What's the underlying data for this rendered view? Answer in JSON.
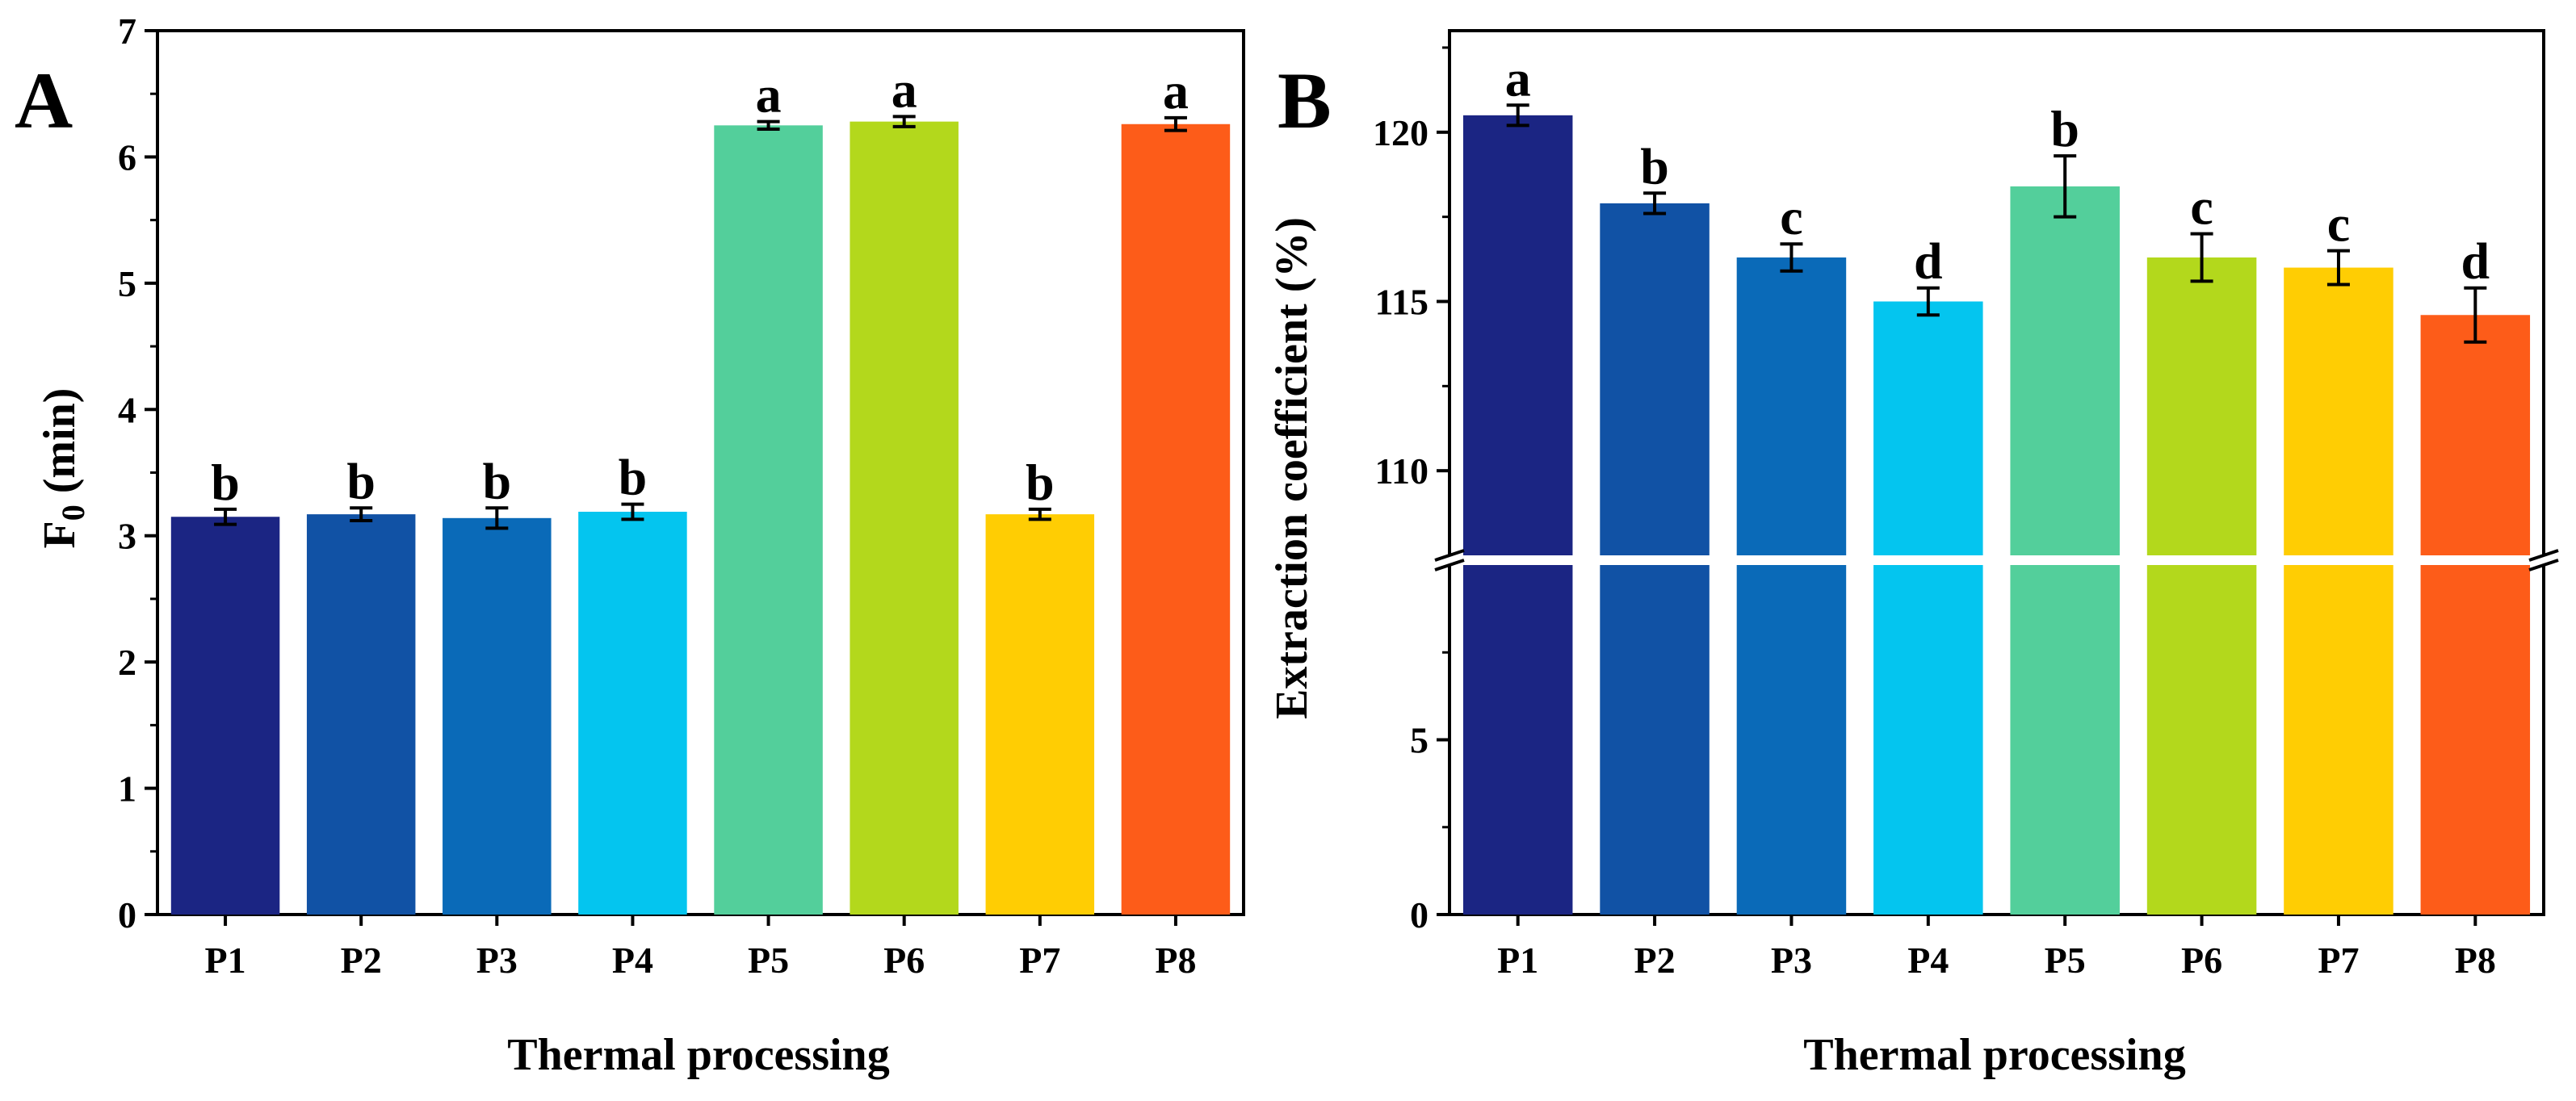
{
  "chart_data": [
    {
      "type": "bar",
      "panel_label": "A",
      "xlabel": "Thermal processing",
      "ylabel_main": "F",
      "ylabel_sub": "0",
      "ylabel_rest": " (min)",
      "categories": [
        "P1",
        "P2",
        "P3",
        "P4",
        "P5",
        "P6",
        "P7",
        "P8"
      ],
      "values": [
        3.15,
        3.17,
        3.14,
        3.19,
        6.25,
        6.28,
        3.17,
        6.26
      ],
      "errors": [
        0.06,
        0.05,
        0.08,
        0.06,
        0.03,
        0.04,
        0.04,
        0.05
      ],
      "letters": [
        "b",
        "b",
        "b",
        "b",
        "a",
        "a",
        "b",
        "a"
      ],
      "ylim": [
        0,
        7
      ],
      "yticks": [
        "0",
        "1",
        "2",
        "3",
        "4",
        "5",
        "6",
        "7"
      ],
      "grid": false
    },
    {
      "type": "bar",
      "panel_label": "B",
      "xlabel": "Thermal processing",
      "ylabel": "Extraction coefficient (%)",
      "categories": [
        "P1",
        "P2",
        "P3",
        "P4",
        "P5",
        "P6",
        "P7",
        "P8"
      ],
      "values": [
        120.5,
        117.9,
        116.3,
        115.0,
        118.4,
        116.3,
        116.0,
        114.6
      ],
      "errors": [
        0.3,
        0.3,
        0.4,
        0.4,
        0.9,
        0.7,
        0.5,
        0.8
      ],
      "letters": [
        "a",
        "b",
        "c",
        "d",
        "b",
        "c",
        "c",
        "d"
      ],
      "axis_break": {
        "lower_range": [
          0,
          10
        ],
        "upper_range": [
          107.5,
          123
        ]
      },
      "yticks_lower": [
        "0",
        "5"
      ],
      "yticks_upper": [
        "110",
        "115",
        "120"
      ],
      "grid": false
    }
  ],
  "colors": [
    "#1b2583",
    "#1152a5",
    "#0a6ab8",
    "#04c5ef",
    "#53cf9b",
    "#b3d81c",
    "#ffcd03",
    "#fd5c19"
  ]
}
